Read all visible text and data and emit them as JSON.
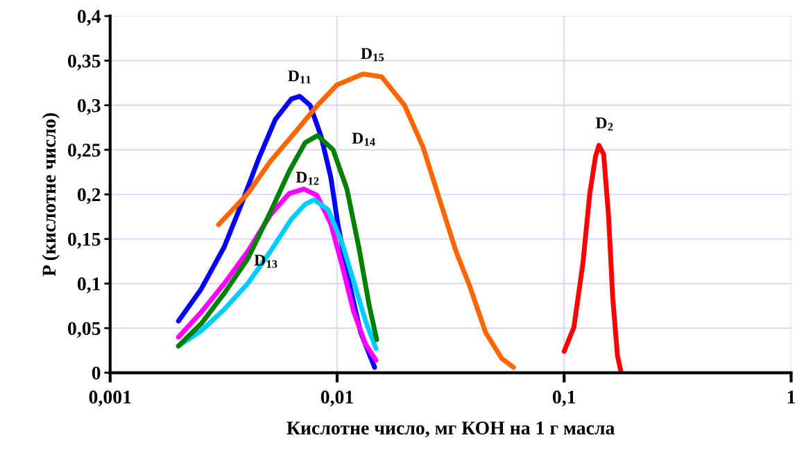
{
  "chart_data": {
    "type": "line",
    "xlabel": "Кислотне число, мг КОН на 1 г масла",
    "ylabel": "P (кислотне число)",
    "log": "x",
    "grid": true,
    "legend": false,
    "marker": "none",
    "line_style": "solid",
    "xlim": [
      0.001,
      1
    ],
    "xticks": [
      {
        "value": 0.001,
        "label": "0,001"
      },
      {
        "value": 0.01,
        "label": "0,01"
      },
      {
        "value": 0.1,
        "label": "0,1"
      },
      {
        "value": 1,
        "label": "1"
      }
    ],
    "ylim": [
      0,
      0.4
    ],
    "yticks": [
      0,
      {
        "value": 0.05,
        "label": "0,05"
      },
      {
        "value": 0.1,
        "label": "0,1"
      },
      {
        "value": 0.15,
        "label": "0,15"
      },
      {
        "value": 0.2,
        "label": "0,2"
      },
      {
        "value": 0.25,
        "label": "0,25"
      },
      {
        "value": 0.3,
        "label": "0,3"
      },
      {
        "value": 0.35,
        "label": "0,35"
      },
      {
        "value": 0.4,
        "label": "0,4"
      }
    ],
    "series": [
      {
        "name": "D$_{11}$",
        "color": "#0000ff",
        "x": [
          0.002,
          0.00252,
          0.00318,
          0.00384,
          0.00451,
          0.00534,
          0.00628,
          0.00684,
          0.0076,
          0.0085,
          0.00938,
          0.01007,
          0.01127,
          0.0127,
          0.01462
        ],
        "values": [
          0.058,
          0.094,
          0.141,
          0.193,
          0.24,
          0.284,
          0.307,
          0.31,
          0.3,
          0.265,
          0.219,
          0.167,
          0.102,
          0.045,
          0.006
        ]
      },
      {
        "name": "D$_{12}$",
        "color": "#ff00ff",
        "x": [
          0.002,
          0.00252,
          0.00318,
          0.00404,
          0.00508,
          0.00615,
          0.00713,
          0.00815,
          0.00938,
          0.0105,
          0.01184,
          0.01334,
          0.01483
        ],
        "values": [
          0.04,
          0.068,
          0.1,
          0.136,
          0.177,
          0.201,
          0.206,
          0.199,
          0.167,
          0.121,
          0.068,
          0.032,
          0.014
        ]
      },
      {
        "name": "D$_{13}$",
        "color": "#00ccff",
        "x": [
          0.002,
          0.00252,
          0.00318,
          0.00404,
          0.00508,
          0.00628,
          0.00723,
          0.00792,
          0.00912,
          0.0105,
          0.01184,
          0.01334,
          0.01483
        ],
        "values": [
          0.03,
          0.047,
          0.071,
          0.1,
          0.136,
          0.172,
          0.189,
          0.194,
          0.183,
          0.146,
          0.102,
          0.058,
          0.027
        ]
      },
      {
        "name": "D$_{14}$",
        "color": "#008000",
        "x": [
          0.002,
          0.00252,
          0.00318,
          0.00404,
          0.00508,
          0.00615,
          0.00723,
          0.0082,
          0.0096,
          0.01104,
          0.01245,
          0.01383,
          0.01494
        ],
        "values": [
          0.03,
          0.055,
          0.089,
          0.128,
          0.18,
          0.226,
          0.258,
          0.266,
          0.25,
          0.206,
          0.141,
          0.076,
          0.037
        ]
      },
      {
        "name": "D$_{15}$",
        "color": "#ff6600",
        "x": [
          0.003,
          0.00404,
          0.00508,
          0.0066,
          0.0082,
          0.01,
          0.013,
          0.0157,
          0.0198,
          0.0239,
          0.0282,
          0.0334,
          0.0384,
          0.0451,
          0.0531,
          0.0598
        ],
        "values": [
          0.166,
          0.201,
          0.237,
          0.271,
          0.3,
          0.323,
          0.335,
          0.332,
          0.3,
          0.253,
          0.195,
          0.136,
          0.097,
          0.045,
          0.016,
          0.006
        ]
      },
      {
        "name": "D$_{2}$",
        "color": "#ff0000",
        "x": [
          0.1,
          0.1104,
          0.121,
          0.1297,
          0.1374,
          0.1422,
          0.1493,
          0.157,
          0.1637,
          0.1718,
          0.178
        ],
        "values": [
          0.024,
          0.051,
          0.123,
          0.201,
          0.242,
          0.255,
          0.245,
          0.175,
          0.084,
          0.019,
          0.001
        ]
      }
    ]
  }
}
